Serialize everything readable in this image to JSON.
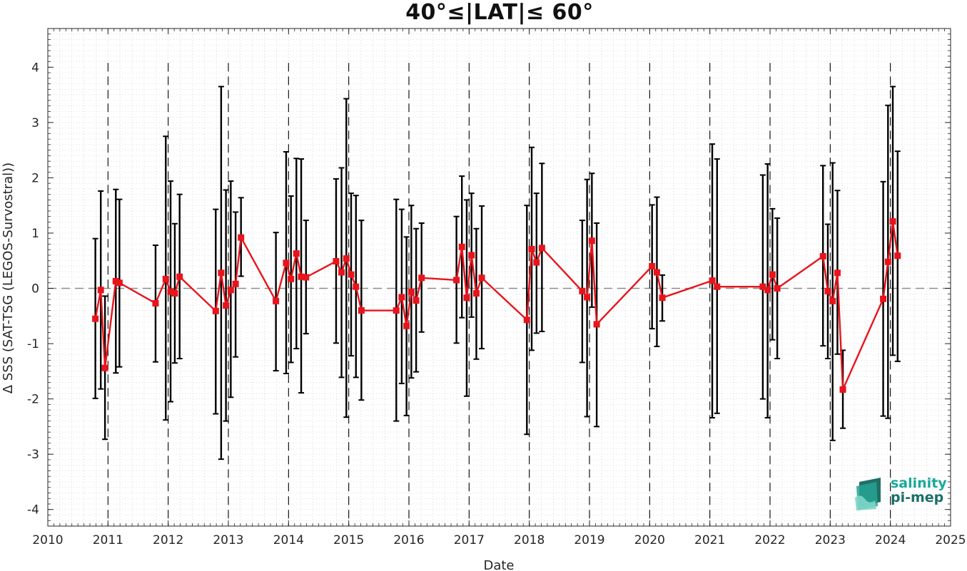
{
  "chart_data": {
    "type": "line",
    "title": "40°≤|LAT|≤ 60°",
    "xlabel": "Date",
    "ylabel": "Δ SSS (SAT-TSG (LEGOS-Survostral))",
    "xlim": [
      2010,
      2025
    ],
    "ylim": [
      -4.3,
      4.7
    ],
    "xticks": [
      2010,
      2011,
      2012,
      2013,
      2014,
      2015,
      2016,
      2017,
      2018,
      2019,
      2020,
      2021,
      2022,
      2023,
      2024,
      2025
    ],
    "yticks": [
      -4,
      -3,
      -2,
      -1,
      0,
      1,
      2,
      3,
      4
    ],
    "zero_line": 0,
    "year_boundaries": [
      2011,
      2012,
      2013,
      2014,
      2015,
      2016,
      2017,
      2018,
      2019,
      2020,
      2021,
      2022,
      2023,
      2024
    ],
    "grid": true,
    "series": [
      {
        "color": "#e8141c",
        "errorbar_color": "#000000",
        "x": [
          2010.79,
          2010.88,
          2010.95,
          2011.13,
          2011.19,
          2011.79,
          2011.96,
          2012.04,
          2012.11,
          2012.19,
          2012.79,
          2012.88,
          2012.96,
          2013.04,
          2013.12,
          2013.21,
          2013.79,
          2013.96,
          2014.04,
          2014.13,
          2014.21,
          2014.29,
          2014.79,
          2014.88,
          2014.96,
          2015.04,
          2015.12,
          2015.21,
          2015.79,
          2015.88,
          2015.96,
          2016.04,
          2016.12,
          2016.21,
          2016.79,
          2016.88,
          2016.96,
          2017.04,
          2017.12,
          2017.21,
          2017.96,
          2018.04,
          2018.12,
          2018.21,
          2018.88,
          2018.96,
          2019.04,
          2019.12,
          2020.04,
          2020.12,
          2020.21,
          2021.04,
          2021.12,
          2021.88,
          2021.96,
          2022.04,
          2022.12,
          2022.88,
          2022.96,
          2023.04,
          2023.12,
          2023.21,
          2023.88,
          2023.96,
          2024.04,
          2024.12
        ],
        "y": [
          -0.55,
          -0.03,
          -1.44,
          0.13,
          0.1,
          -0.27,
          0.17,
          -0.06,
          -0.09,
          0.21,
          -0.41,
          0.28,
          -0.31,
          -0.03,
          0.08,
          0.92,
          -0.23,
          0.46,
          0.17,
          0.63,
          0.21,
          0.2,
          0.49,
          0.29,
          0.54,
          0.25,
          0.03,
          -0.4,
          -0.4,
          -0.16,
          -0.68,
          -0.06,
          -0.22,
          0.19,
          0.15,
          0.75,
          -0.17,
          0.6,
          -0.09,
          0.19,
          -0.57,
          0.71,
          0.47,
          0.73,
          -0.05,
          -0.16,
          0.86,
          -0.65,
          0.4,
          0.29,
          -0.17,
          0.14,
          0.03,
          0.03,
          -0.03,
          0.25,
          0.0,
          0.58,
          -0.05,
          -0.23,
          0.28,
          -1.83,
          -0.19,
          0.48,
          1.21,
          0.59
        ],
        "err_low": [
          -1.99,
          -1.82,
          -2.73,
          -1.53,
          -1.42,
          -1.33,
          -2.38,
          -2.05,
          -1.35,
          -1.27,
          -2.27,
          -3.09,
          -2.4,
          -1.97,
          -1.24,
          0.22,
          -1.49,
          -1.54,
          -1.34,
          -1.09,
          -1.89,
          -0.82,
          -0.99,
          -1.61,
          -2.33,
          -1.22,
          -1.61,
          -2.02,
          -2.4,
          -1.72,
          -2.3,
          -1.62,
          -1.51,
          -0.79,
          -0.99,
          -0.53,
          -1.95,
          -0.52,
          -1.28,
          -1.09,
          -2.64,
          -1.12,
          -0.81,
          -0.78,
          -1.34,
          -2.32,
          -0.34,
          -2.5,
          -0.73,
          -1.05,
          -0.59,
          -2.34,
          -2.26,
          -2.0,
          -2.34,
          -0.93,
          -1.27,
          -1.04,
          -1.27,
          -2.75,
          -1.19,
          -2.53,
          -2.31,
          -2.35,
          -1.21,
          -1.32
        ],
        "err_high": [
          0.9,
          1.76,
          -0.14,
          1.79,
          1.61,
          0.78,
          2.75,
          1.94,
          1.17,
          1.7,
          1.43,
          3.65,
          1.78,
          1.94,
          1.38,
          1.64,
          1.01,
          2.47,
          1.67,
          2.35,
          2.34,
          1.23,
          1.98,
          2.18,
          3.43,
          1.72,
          1.68,
          1.23,
          1.61,
          1.43,
          0.93,
          1.5,
          1.08,
          1.18,
          1.3,
          2.03,
          1.6,
          1.72,
          1.08,
          1.49,
          1.5,
          2.55,
          1.72,
          2.26,
          1.23,
          1.97,
          2.08,
          1.18,
          1.51,
          1.65,
          0.24,
          2.61,
          2.34,
          2.05,
          2.25,
          1.44,
          1.27,
          2.22,
          1.16,
          2.27,
          1.77,
          -1.12,
          1.93,
          3.31,
          3.65,
          2.48
        ]
      }
    ]
  },
  "logo": {
    "line1": "salinity",
    "line2": "pi-mep",
    "color_primary": "#1aa89a",
    "color_secondary": "#1a6f69",
    "icon": "salinity-waves-icon"
  }
}
